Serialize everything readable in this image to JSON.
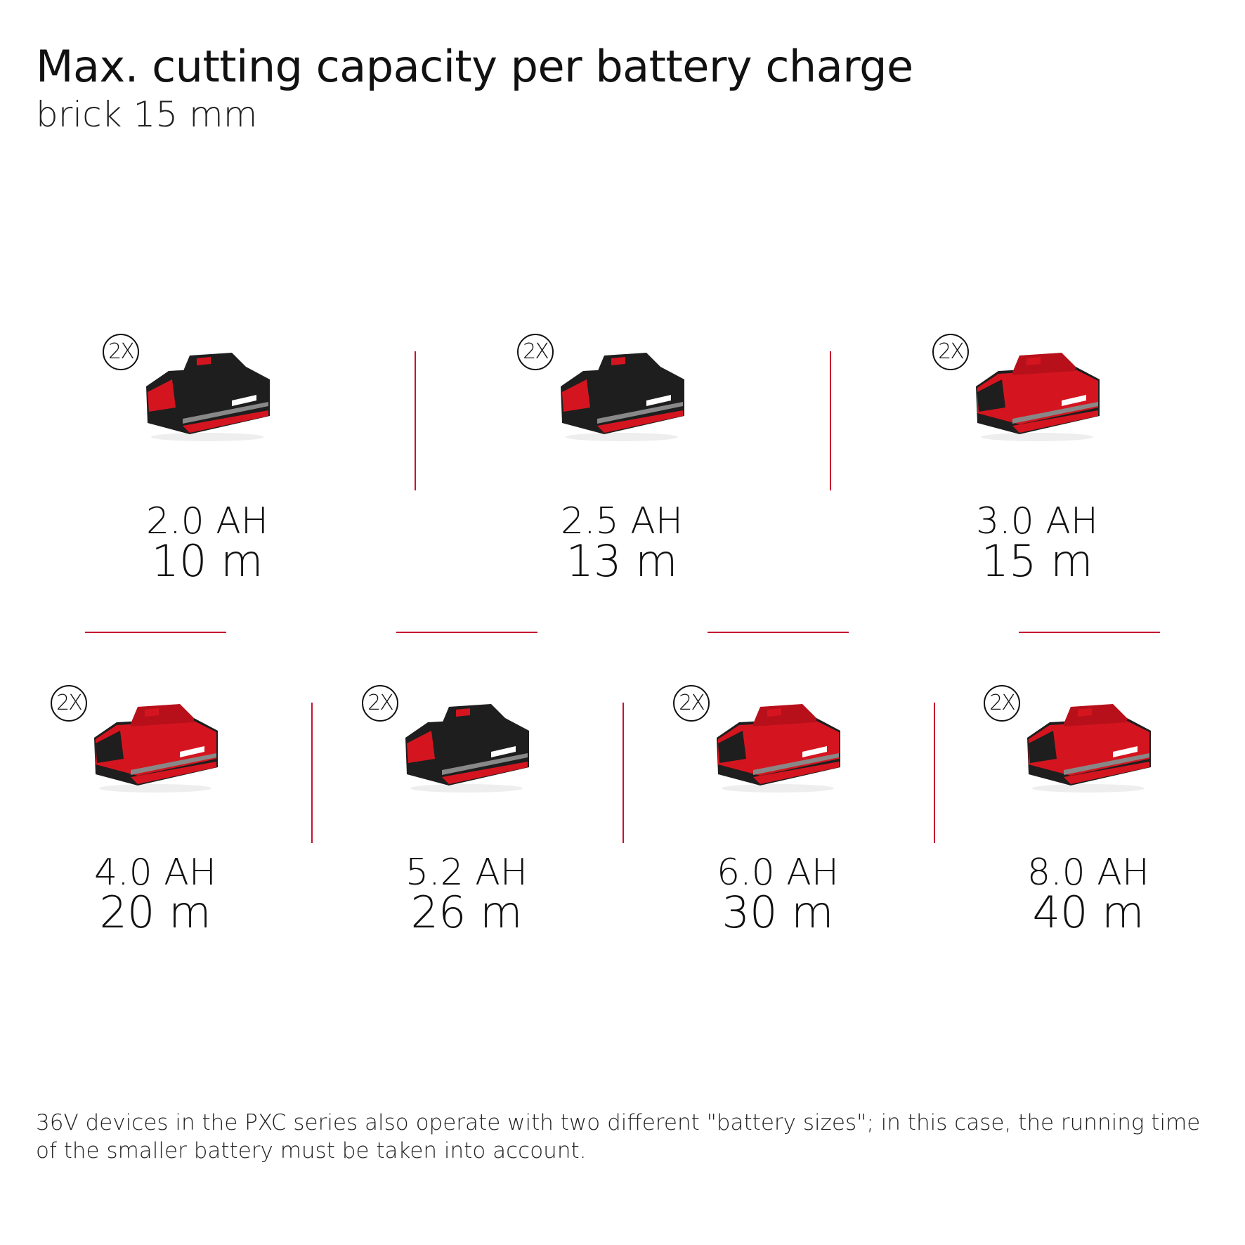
{
  "header": {
    "title": "Max. cutting capacity per battery charge",
    "subtitle": "brick 15 mm"
  },
  "colors": {
    "accent": "#c4122f",
    "battery_red": "#d4151f",
    "battery_black": "#1e1e1e"
  },
  "batteries": [
    {
      "badge": "2X",
      "capacity": "2.0 AH",
      "run": "10 m",
      "style": "black-red"
    },
    {
      "badge": "2X",
      "capacity": "2.5 AH",
      "run": "13 m",
      "style": "black-red"
    },
    {
      "badge": "2X",
      "capacity": "3.0 AH",
      "run": "15 m",
      "style": "red"
    },
    {
      "badge": "2X",
      "capacity": "4.0 AH",
      "run": "20 m",
      "style": "red"
    },
    {
      "badge": "2X",
      "capacity": "5.2 AH",
      "run": "26 m",
      "style": "black-red"
    },
    {
      "badge": "2X",
      "capacity": "6.0 AH",
      "run": "30 m",
      "style": "red"
    },
    {
      "badge": "2X",
      "capacity": "8.0 AH",
      "run": "40 m",
      "style": "red"
    }
  ],
  "footer": {
    "note": "36V devices in the PXC series also operate with two different \"battery sizes\"; in this case, the running time of the smaller battery must be taken into account."
  }
}
